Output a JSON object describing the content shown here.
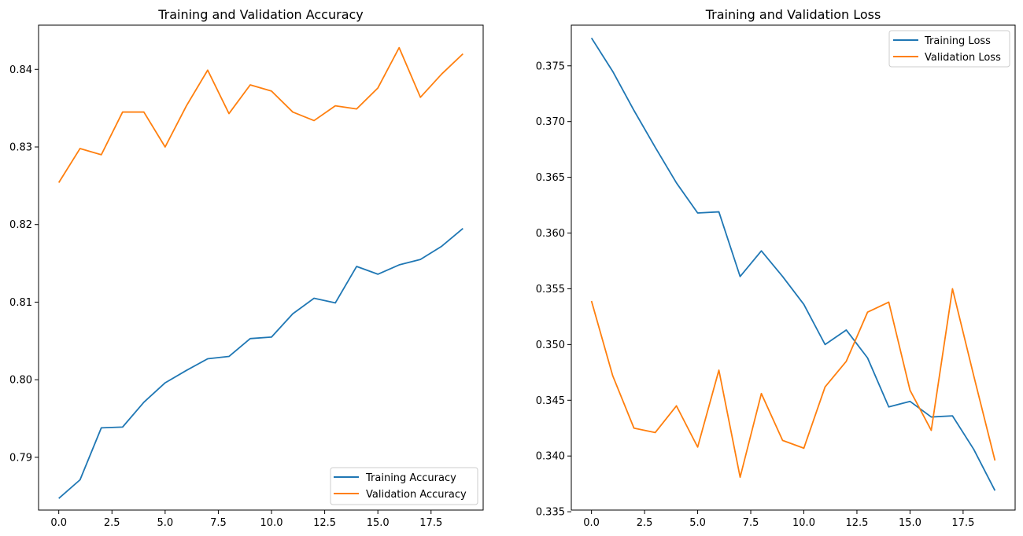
{
  "figure": {
    "background": "#ffffff"
  },
  "chart_data": [
    {
      "type": "line",
      "title": "Training and Validation Accuracy",
      "xlabel": "",
      "ylabel": "",
      "xlim": [
        -0.95,
        19.95
      ],
      "ylim": [
        0.7832,
        0.8457
      ],
      "xticks": [
        0.0,
        2.5,
        5.0,
        7.5,
        10.0,
        12.5,
        15.0,
        17.5
      ],
      "xtick_labels": [
        "0.0",
        "2.5",
        "5.0",
        "7.5",
        "10.0",
        "12.5",
        "15.0",
        "17.5"
      ],
      "yticks": [
        0.79,
        0.8,
        0.81,
        0.82,
        0.83,
        0.84
      ],
      "ytick_labels": [
        "0.79",
        "0.80",
        "0.81",
        "0.82",
        "0.83",
        "0.84"
      ],
      "grid": false,
      "legend_position": "lower right",
      "x": [
        0,
        1,
        2,
        3,
        4,
        5,
        6,
        7,
        8,
        9,
        10,
        11,
        12,
        13,
        14,
        15,
        16,
        17,
        18,
        19
      ],
      "series": [
        {
          "name": "Training Accuracy",
          "color": "#1f77b4",
          "values": [
            0.7847,
            0.7871,
            0.7938,
            0.7939,
            0.7971,
            0.7996,
            0.8012,
            0.8027,
            0.803,
            0.8053,
            0.8055,
            0.8085,
            0.8105,
            0.8099,
            0.8146,
            0.8136,
            0.8148,
            0.8155,
            0.8172,
            0.8195
          ]
        },
        {
          "name": "Validation Accuracy",
          "color": "#ff7f0e",
          "values": [
            0.8254,
            0.8298,
            0.829,
            0.8345,
            0.8345,
            0.83,
            0.8353,
            0.8399,
            0.8343,
            0.838,
            0.8372,
            0.8345,
            0.8334,
            0.8353,
            0.8349,
            0.8376,
            0.8428,
            0.8364,
            0.8394,
            0.842
          ]
        }
      ]
    },
    {
      "type": "line",
      "title": "Training and Validation Loss",
      "xlabel": "",
      "ylabel": "",
      "xlim": [
        -0.95,
        19.95
      ],
      "ylim": [
        0.33515,
        0.37865
      ],
      "xticks": [
        0.0,
        2.5,
        5.0,
        7.5,
        10.0,
        12.5,
        15.0,
        17.5
      ],
      "xtick_labels": [
        "0.0",
        "2.5",
        "5.0",
        "7.5",
        "10.0",
        "12.5",
        "15.0",
        "17.5"
      ],
      "yticks": [
        0.335,
        0.34,
        0.345,
        0.35,
        0.355,
        0.36,
        0.365,
        0.37,
        0.375
      ],
      "ytick_labels": [
        "0.335",
        "0.340",
        "0.345",
        "0.350",
        "0.355",
        "0.360",
        "0.365",
        "0.370",
        "0.375"
      ],
      "grid": false,
      "legend_position": "upper right",
      "x": [
        0,
        1,
        2,
        3,
        4,
        5,
        6,
        7,
        8,
        9,
        10,
        11,
        12,
        13,
        14,
        15,
        16,
        17,
        18,
        19
      ],
      "series": [
        {
          "name": "Training Loss",
          "color": "#1f77b4",
          "values": [
            0.3775,
            0.3745,
            0.371,
            0.3677,
            0.3645,
            0.3618,
            0.3619,
            0.3561,
            0.3584,
            0.3561,
            0.3536,
            0.35,
            0.3513,
            0.3488,
            0.3444,
            0.3449,
            0.3435,
            0.3436,
            0.3406,
            0.3369
          ]
        },
        {
          "name": "Validation Loss",
          "color": "#ff7f0e",
          "values": [
            0.3539,
            0.3472,
            0.3425,
            0.3421,
            0.3445,
            0.3408,
            0.3477,
            0.3381,
            0.3456,
            0.3414,
            0.3407,
            0.3462,
            0.3485,
            0.3529,
            0.3538,
            0.3459,
            0.3423,
            0.355,
            0.3472,
            0.3396
          ]
        }
      ]
    }
  ]
}
